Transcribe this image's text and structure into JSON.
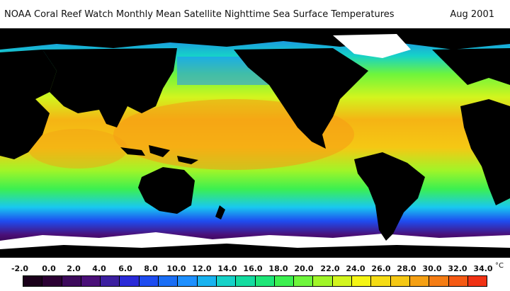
{
  "title": {
    "text": "NOAA Coral Reef Watch Monthly Mean Satellite Nighttime Sea Surface Temperatures",
    "date": "Aug 2001"
  },
  "legend": {
    "unit": "°C",
    "ticks": [
      "-2.0",
      "0.0",
      "2.0",
      "4.0",
      "6.0",
      "8.0",
      "10.0",
      "12.0",
      "14.0",
      "16.0",
      "18.0",
      "20.0",
      "22.0",
      "24.0",
      "26.0",
      "28.0",
      "30.0",
      "32.0",
      "34.0"
    ],
    "colors": [
      "#1a001a",
      "#2b0033",
      "#3d0a5c",
      "#4a0f78",
      "#3c1fa0",
      "#2a2ad8",
      "#1e4cf0",
      "#1a6ef5",
      "#1e90ff",
      "#19b3f0",
      "#16d2c8",
      "#14dca0",
      "#1ee678",
      "#3cf050",
      "#6ef53c",
      "#a0f528",
      "#d2f51e",
      "#f5f514",
      "#f5dc14",
      "#f5c814",
      "#f5a014",
      "#f57d14",
      "#f55a14",
      "#f03214"
    ]
  },
  "map": {
    "land_color": "#000000",
    "ice_color": "#ffffff"
  }
}
